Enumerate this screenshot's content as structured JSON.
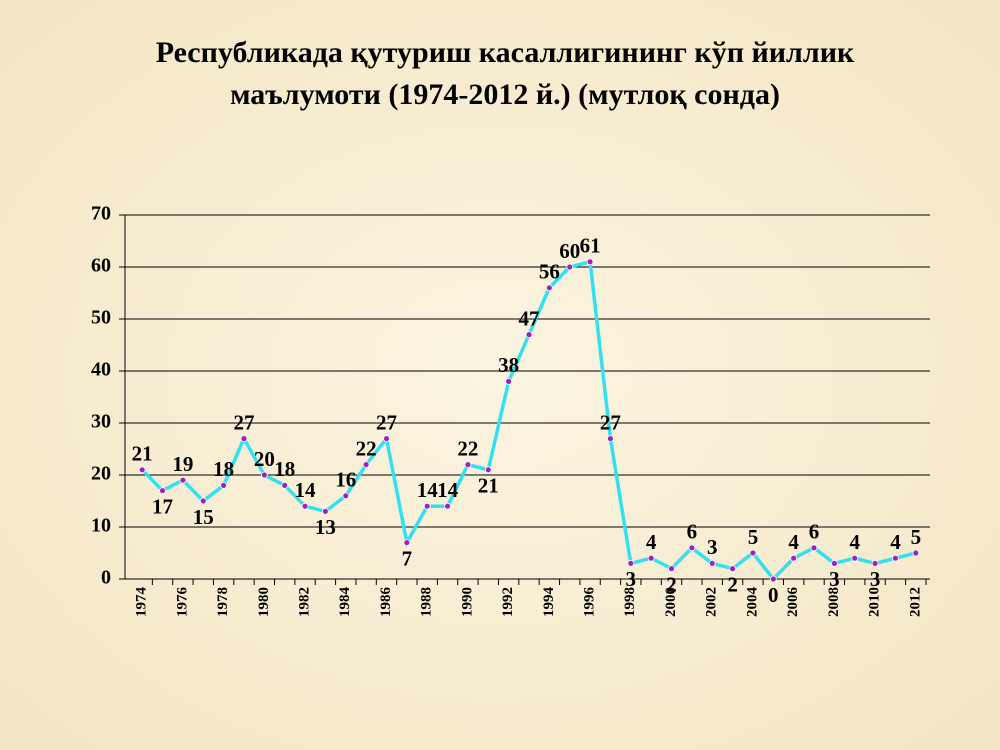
{
  "chart_data": {
    "type": "line",
    "title": [
      "Республикада қутуриш касаллигининг кўп йиллик",
      "маълумоти (1974-2012 й.) (мутлоқ сонда)"
    ],
    "categories": [
      "1974",
      null,
      "1976",
      null,
      "1978",
      null,
      "1980",
      null,
      "1982",
      null,
      "1984",
      null,
      "1986",
      null,
      "1988",
      null,
      "1990",
      null,
      "1992",
      null,
      "1994",
      null,
      "1996",
      null,
      "1998",
      null,
      "2000",
      null,
      "2002",
      null,
      "2004",
      null,
      "2006",
      null,
      "2008",
      null,
      "2010",
      null,
      "2012"
    ],
    "series": [
      {
        "color": "#33e0f0",
        "marker_color": "#a020c0",
        "values": [
          21,
          17,
          19,
          15,
          18,
          27,
          20,
          18,
          14,
          13,
          16,
          22,
          27,
          7,
          14,
          14,
          22,
          21,
          38,
          47,
          56,
          60,
          61,
          27,
          3,
          4,
          2,
          6,
          3,
          2,
          5,
          0,
          4,
          6,
          3,
          4,
          3,
          4,
          5
        ]
      }
    ],
    "ylim": [
      0,
      70
    ],
    "yticks": [
      0,
      10,
      20,
      30,
      40,
      50,
      60,
      70
    ],
    "grid": true
  }
}
